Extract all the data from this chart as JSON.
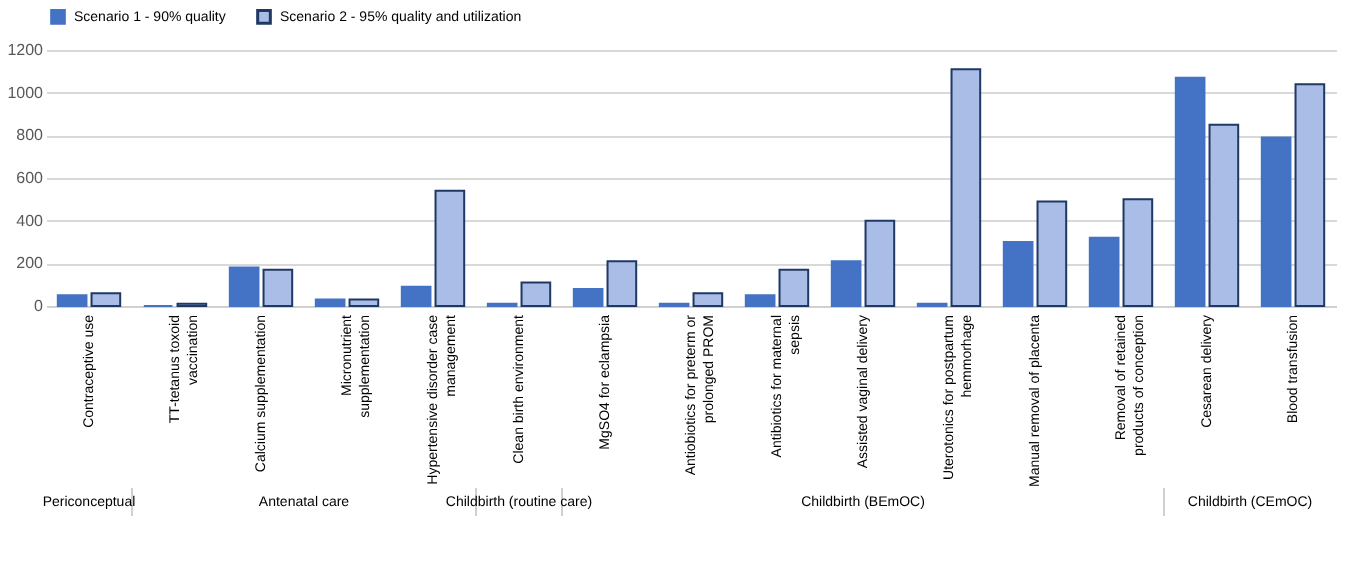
{
  "chart_data": {
    "type": "bar",
    "categories": [
      "Contraceptive use",
      "TT-tetanus toxoid vaccination",
      "Calcium  supplementation",
      "Micronutrient supplementation",
      "Hypertensive disorder case management",
      "Clean birth environment",
      "MgSO4 for eclampsia",
      "Antiobiotics for preterm or prolonged PROM",
      "Antibiotics for maternal sepsis",
      "Assisted vaginal delivery",
      "Uterotonics for postpartum hemmorhage",
      "Manual removal of placenta",
      "Removal of retained products of conception",
      "Cesarean delivery",
      "Blood transfusion"
    ],
    "series": [
      {
        "name": "Scenario 1  - 90% quality",
        "color": "#4472c4",
        "values": [
          50,
          0,
          180,
          30,
          90,
          10,
          80,
          10,
          50,
          210,
          10,
          300,
          320,
          1070,
          790
        ]
      },
      {
        "name": "Scenario 2 - 95% quality and utilization",
        "color": "#a9bde6",
        "values": [
          60,
          10,
          170,
          30,
          540,
          110,
          210,
          60,
          170,
          400,
          1110,
          490,
          500,
          850,
          1040
        ]
      }
    ],
    "ylim": [
      0,
      1200
    ],
    "yticks": [
      0,
      200,
      400,
      600,
      800,
      1000,
      1200
    ],
    "grid": "y",
    "legend": "top",
    "annotations": [
      "Periconceptual",
      "Antenatal care",
      "Childbirth (routine care)",
      "Childbirth (BEmOC)",
      "Childbirth (CEmOC)"
    ]
  }
}
